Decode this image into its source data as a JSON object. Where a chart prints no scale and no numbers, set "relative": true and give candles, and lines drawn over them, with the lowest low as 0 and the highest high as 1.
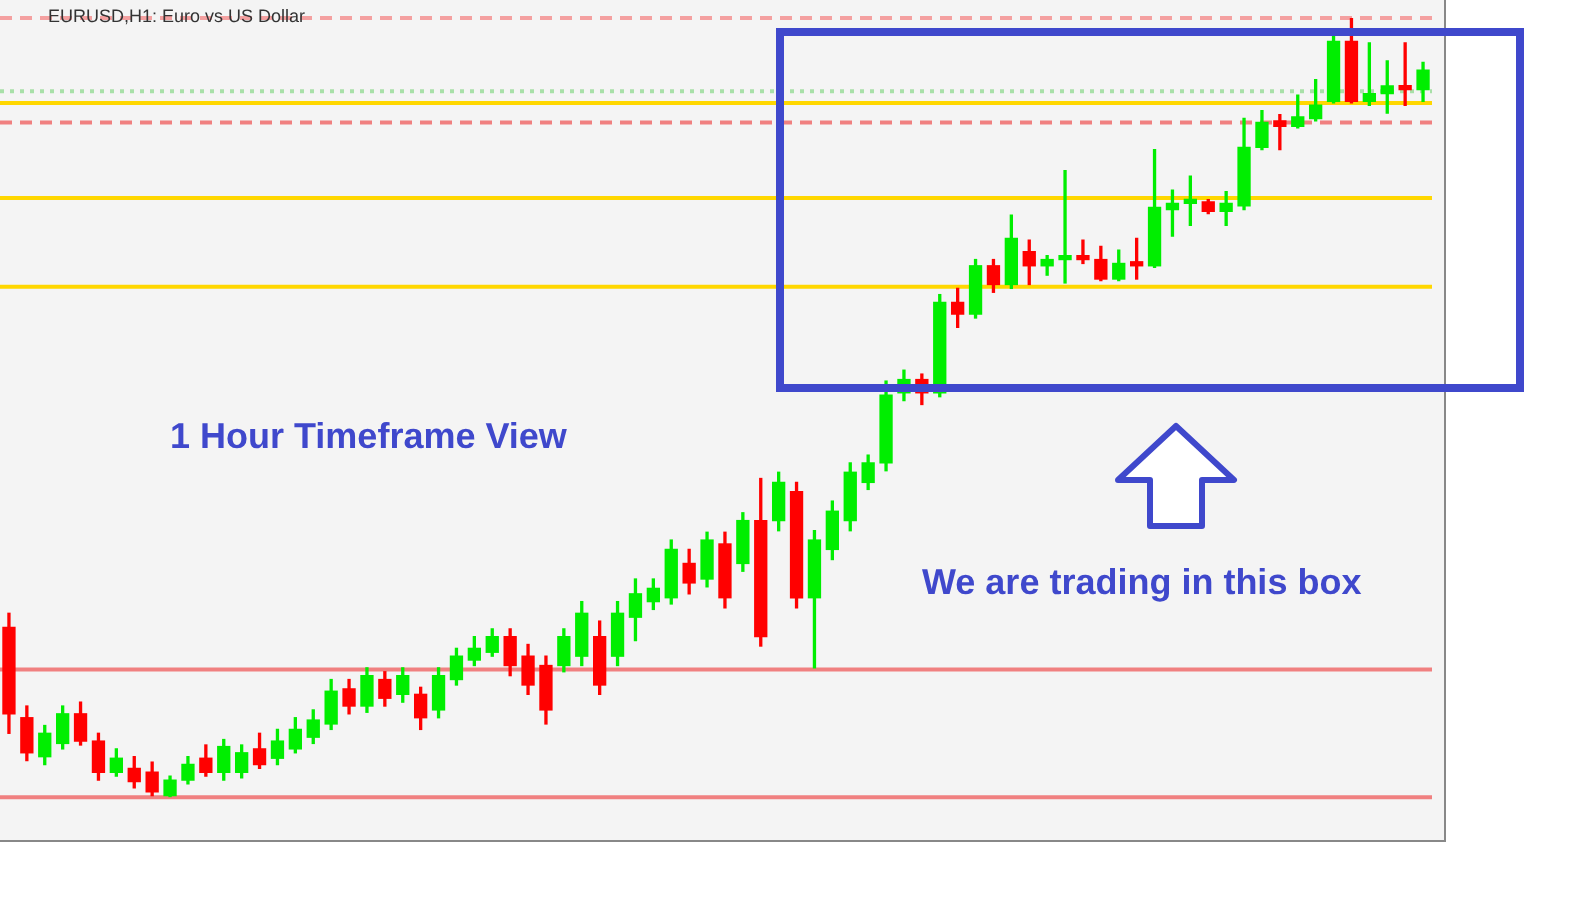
{
  "chart_data": {
    "type": "candlestick",
    "title": "EURUSD,H1: Euro vs US Dollar",
    "relative": true,
    "categories": [
      null,
      null,
      null,
      null,
      null,
      null,
      null,
      null,
      null,
      null,
      null,
      null,
      null,
      null,
      null,
      null,
      null,
      null,
      null,
      null,
      null,
      null,
      null,
      null,
      null,
      null,
      null,
      null,
      null,
      null,
      null,
      null,
      null,
      null,
      null,
      null,
      null,
      null,
      null,
      null,
      null,
      null,
      null,
      null,
      null,
      null,
      null,
      null,
      null,
      null,
      null,
      null,
      null,
      null,
      null,
      null,
      null,
      null,
      null,
      null,
      null,
      null,
      null,
      null,
      null,
      null,
      null,
      null,
      null,
      null,
      null,
      null,
      null,
      null,
      null,
      null,
      null,
      null,
      null,
      null
    ],
    "ohlc": [
      [
        0.218,
        0.236,
        0.082,
        0.107
      ],
      [
        0.102,
        0.117,
        0.047,
        0.057
      ],
      [
        0.052,
        0.092,
        0.042,
        0.082
      ],
      [
        0.069,
        0.117,
        0.062,
        0.107
      ],
      [
        0.107,
        0.122,
        0.067,
        0.072
      ],
      [
        0.072,
        0.082,
        0.022,
        0.032
      ],
      [
        0.032,
        0.062,
        0.027,
        0.05
      ],
      [
        0.037,
        0.052,
        0.012,
        0.02
      ],
      [
        0.032,
        0.045,
        0.002,
        0.007
      ],
      [
        0.002,
        0.027,
        0,
        0.022
      ],
      [
        0.022,
        0.052,
        0.017,
        0.042
      ],
      [
        0.05,
        0.067,
        0.027,
        0.032
      ],
      [
        0.032,
        0.074,
        0.022,
        0.065
      ],
      [
        0.032,
        0.067,
        0.025,
        0.057
      ],
      [
        0.062,
        0.082,
        0.037,
        0.042
      ],
      [
        0.05,
        0.087,
        0.042,
        0.072
      ],
      [
        0.062,
        0.102,
        0.057,
        0.087
      ],
      [
        0.077,
        0.112,
        0.069,
        0.099
      ],
      [
        0.094,
        0.151,
        0.087,
        0.136
      ],
      [
        0.139,
        0.151,
        0.107,
        0.117
      ],
      [
        0.117,
        0.166,
        0.109,
        0.156
      ],
      [
        0.151,
        0.161,
        0.117,
        0.127
      ],
      [
        0.132,
        0.166,
        0.122,
        0.156
      ],
      [
        0.132,
        0.141,
        0.087,
        0.102
      ],
      [
        0.112,
        0.166,
        0.102,
        0.156
      ],
      [
        0.151,
        0.191,
        0.144,
        0.181
      ],
      [
        0.176,
        0.206,
        0.169,
        0.191
      ],
      [
        0.186,
        0.216,
        0.181,
        0.206
      ],
      [
        0.206,
        0.216,
        0.156,
        0.169
      ],
      [
        0.181,
        0.196,
        0.132,
        0.144
      ],
      [
        0.169,
        0.181,
        0.094,
        0.112
      ],
      [
        0.169,
        0.216,
        0.161,
        0.206
      ],
      [
        0.181,
        0.251,
        0.169,
        0.236
      ],
      [
        0.206,
        0.226,
        0.132,
        0.144
      ],
      [
        0.181,
        0.251,
        0.169,
        0.236
      ],
      [
        0.231,
        0.28,
        0.201,
        0.261
      ],
      [
        0.251,
        0.28,
        0.241,
        0.268
      ],
      [
        0.256,
        0.33,
        0.248,
        0.318
      ],
      [
        0.3,
        0.318,
        0.261,
        0.275
      ],
      [
        0.28,
        0.34,
        0.27,
        0.33
      ],
      [
        0.325,
        0.34,
        0.243,
        0.256
      ],
      [
        0.3,
        0.365,
        0.29,
        0.355
      ],
      [
        0.355,
        0.409,
        0.194,
        0.206
      ],
      [
        0.355,
        0.417,
        0.342,
        0.404
      ],
      [
        0.392,
        0.404,
        0.243,
        0.256
      ],
      [
        0.256,
        0.342,
        0.166,
        0.33
      ],
      [
        0.318,
        0.38,
        0.305,
        0.367
      ],
      [
        0.355,
        0.429,
        0.342,
        0.417
      ],
      [
        0.404,
        0.439,
        0.395,
        0.429
      ],
      [
        0.429,
        0.534,
        0.419,
        0.516
      ],
      [
        0.519,
        0.548,
        0.509,
        0.536
      ],
      [
        0.536,
        0.543,
        0.504,
        0.519
      ],
      [
        0.519,
        0.645,
        0.514,
        0.635
      ],
      [
        0.635,
        0.653,
        0.603,
        0.62
      ],
      [
        0.62,
        0.69,
        0.615,
        0.682
      ],
      [
        0.682,
        0.69,
        0.648,
        0.658
      ],
      [
        0.658,
        0.747,
        0.653,
        0.717
      ],
      [
        0.7,
        0.715,
        0.658,
        0.682
      ],
      [
        0.682,
        0.695,
        0.67,
        0.69
      ],
      [
        0.69,
        0.804,
        0.66,
        0.695
      ],
      [
        0.695,
        0.715,
        0.685,
        0.69
      ],
      [
        0.69,
        0.707,
        0.663,
        0.665
      ],
      [
        0.665,
        0.702,
        0.663,
        0.685
      ],
      [
        0.687,
        0.717,
        0.665,
        0.682
      ],
      [
        0.682,
        0.831,
        0.68,
        0.757
      ],
      [
        0.754,
        0.779,
        0.72,
        0.762
      ],
      [
        0.762,
        0.797,
        0.734,
        0.764
      ],
      [
        0.764,
        0.767,
        0.749,
        0.752
      ],
      [
        0.752,
        0.777,
        0.734,
        0.762
      ],
      [
        0.759,
        0.871,
        0.754,
        0.834
      ],
      [
        0.834,
        0.881,
        0.831,
        0.866
      ],
      [
        0.868,
        0.876,
        0.831,
        0.861
      ],
      [
        0.861,
        0.901,
        0.859,
        0.873
      ],
      [
        0.871,
        0.921,
        0.868,
        0.888
      ],
      [
        0.893,
        0.98,
        0.891,
        0.97
      ],
      [
        0.97,
        1,
        0.891,
        0.893
      ],
      [
        0.893,
        0.968,
        0.888,
        0.903
      ],
      [
        0.903,
        0.945,
        0.878,
        0.913
      ],
      [
        0.913,
        0.968,
        0.888,
        0.908
      ],
      [
        0.908,
        0.943,
        0.893,
        0.933
      ]
    ],
    "colors": [
      "#ff0000",
      "#ff0000",
      "#00ee00",
      "#00ee00",
      "#ff0000",
      "#ff0000",
      "#00ee00",
      "#ff0000",
      "#ff0000",
      "#00ee00",
      "#00ee00",
      "#ff0000",
      "#00ee00",
      "#00ee00",
      "#ff0000",
      "#00ee00",
      "#00ee00",
      "#00ee00",
      "#00ee00",
      "#ff0000",
      "#00ee00",
      "#ff0000",
      "#00ee00",
      "#ff0000",
      "#00ee00",
      "#00ee00",
      "#00ee00",
      "#00ee00",
      "#ff0000",
      "#ff0000",
      "#ff0000",
      "#00ee00",
      "#00ee00",
      "#ff0000",
      "#00ee00",
      "#00ee00",
      "#00ee00",
      "#00ee00",
      "#ff0000",
      "#00ee00",
      "#ff0000",
      "#00ee00",
      "#ff0000",
      "#00ee00",
      "#ff0000",
      "#00ee00",
      "#00ee00",
      "#00ee00",
      "#00ee00",
      "#00ee00",
      "#00ee00",
      "#ff0000",
      "#00ee00",
      "#ff0000",
      "#00ee00",
      "#ff0000",
      "#00ee00",
      "#ff0000",
      "#00ee00",
      "#00ee00",
      "#ff0000",
      "#ff0000",
      "#00ee00",
      "#ff0000",
      "#00ee00",
      "#00ee00",
      "#00ee00",
      "#ff0000",
      "#00ee00",
      "#00ee00",
      "#00ee00",
      "#ff0000",
      "#00ee00",
      "#00ee00",
      "#00ee00",
      "#ff0000",
      "#00ee00",
      "#00ee00",
      "#ff0000",
      "#00ee00"
    ],
    "ref_lines": [
      {
        "axis": "y",
        "value": 0.891,
        "color": "#ffd700",
        "line_style": "solid"
      },
      {
        "axis": "y",
        "value": 0.769,
        "color": "#ffd700",
        "line_style": "solid"
      },
      {
        "axis": "y",
        "value": 0.655,
        "color": "#ffd700",
        "line_style": "solid"
      },
      {
        "axis": "y",
        "value": 0.164,
        "color": "#f08080",
        "line_style": "solid"
      },
      {
        "axis": "y",
        "value": 0,
        "color": "#f08080",
        "line_style": "solid"
      },
      {
        "axis": "y",
        "value": 1,
        "color": "#f4a0a0",
        "line_style": "dashed"
      },
      {
        "axis": "y",
        "value": 0.866,
        "color": "#f08080",
        "line_style": "dashed"
      },
      {
        "axis": "y",
        "value": 0.906,
        "color": "#a8e0a8",
        "line_style": "dotted"
      }
    ],
    "annotations": [
      "1 Hour Timeframe View",
      "We are trading in this box"
    ]
  }
}
